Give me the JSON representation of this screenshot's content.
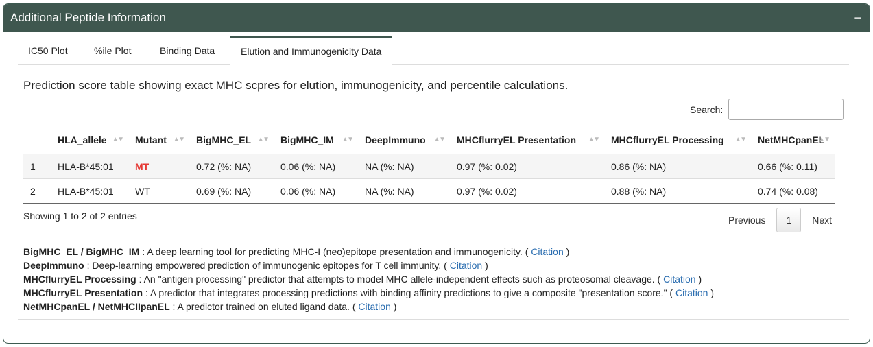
{
  "panel": {
    "title": "Additional Peptide Information",
    "collapse_label": "−"
  },
  "tabs": [
    {
      "label": "IC50 Plot"
    },
    {
      "label": "%ile Plot"
    },
    {
      "label": "Binding Data"
    },
    {
      "label": "Elution and Immunogenicity Data"
    }
  ],
  "description": "Prediction score table showing exact MHC scpres for elution, immunogenicity, and percentile calculations.",
  "search": {
    "label": "Search:",
    "value": ""
  },
  "table": {
    "columns": [
      "",
      "HLA_allele",
      "Mutant",
      "BigMHC_EL",
      "BigMHC_IM",
      "DeepImmuno",
      "MHCflurryEL Presentation",
      "MHCflurryEL Processing",
      "NetMHCpanEL"
    ],
    "rows": [
      [
        "1",
        "HLA-B*45:01",
        "MT",
        "0.72 (%: NA)",
        "0.06 (%: NA)",
        "NA (%: NA)",
        "0.97 (%: 0.02)",
        "0.86 (%: NA)",
        "0.66 (%: 0.11)"
      ],
      [
        "2",
        "HLA-B*45:01",
        "WT",
        "0.69 (%: NA)",
        "0.06 (%: NA)",
        "NA (%: NA)",
        "0.97 (%: 0.02)",
        "0.88 (%: NA)",
        "0.74 (%: 0.08)"
      ]
    ]
  },
  "info": "Showing 1 to 2 of 2 entries",
  "pager": {
    "previous": "Previous",
    "page": "1",
    "next": "Next"
  },
  "notes": [
    {
      "name": "BigMHC_EL / BigMHC_IM",
      "text": " : A deep learning tool for predicting MHC-I (neo)epitope presentation and immunogenicity. ( ",
      "link": "Citation",
      "end": " )"
    },
    {
      "name": "DeepImmuno",
      "text": " : Deep-learning empowered prediction of immunogenic epitopes for T cell immunity. ( ",
      "link": "Citation",
      "end": " )"
    },
    {
      "name": "MHCflurryEL Processing",
      "text": " : An \"antigen processing\" predictor that attempts to model MHC allele-independent effects such as proteosomal cleavage. ( ",
      "link": "Citation",
      "end": " )"
    },
    {
      "name": "MHCflurryEL Presentation",
      "text": " : A predictor that integrates processing predictions with binding affinity predictions to give a composite \"presentation score.\" ( ",
      "link": "Citation",
      "end": " )"
    },
    {
      "name": "NetMHCpanEL / NetMHCIIpanEL",
      "text": " : A predictor trained on eluted ligand data. ( ",
      "link": "Citation",
      "end": " )"
    }
  ]
}
